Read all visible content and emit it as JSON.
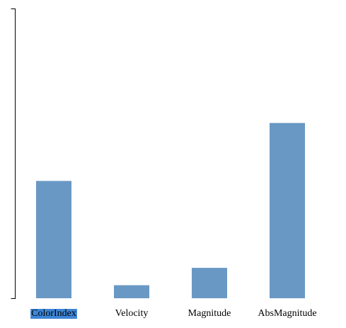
{
  "chart_data": {
    "type": "bar",
    "categories": [
      "ColorIndex",
      "Velocity",
      "Magnitude",
      "AbsMagnitude"
    ],
    "values": [
      0.405,
      0.045,
      0.105,
      0.605
    ],
    "ylim": [
      0,
      1
    ],
    "title": "",
    "xlabel": "",
    "ylabel": "",
    "grid": false,
    "legend": "none",
    "y_tick_labels_shown": false,
    "selected_category": "ColorIndex"
  },
  "colors": {
    "bar": "#6a98c4",
    "selection_highlight": "#3d86d8",
    "axis": "#000000",
    "background": "#ffffff"
  }
}
